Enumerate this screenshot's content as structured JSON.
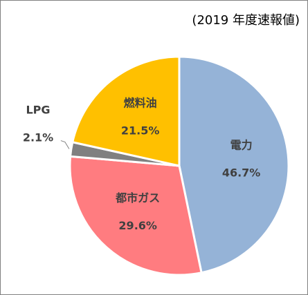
{
  "chart_data": {
    "type": "pie",
    "subtitle": "(2019 年度速報値)",
    "categories": [
      "電力",
      "都市ガス",
      "LPG",
      "燃料油"
    ],
    "values": [
      46.7,
      29.6,
      2.1,
      21.5
    ],
    "value_labels": [
      "46.7%",
      "29.6%",
      "2.1%",
      "21.5%"
    ],
    "colors": [
      "#95b3d7",
      "#ff7c80",
      "#808080",
      "#ffc000"
    ]
  }
}
